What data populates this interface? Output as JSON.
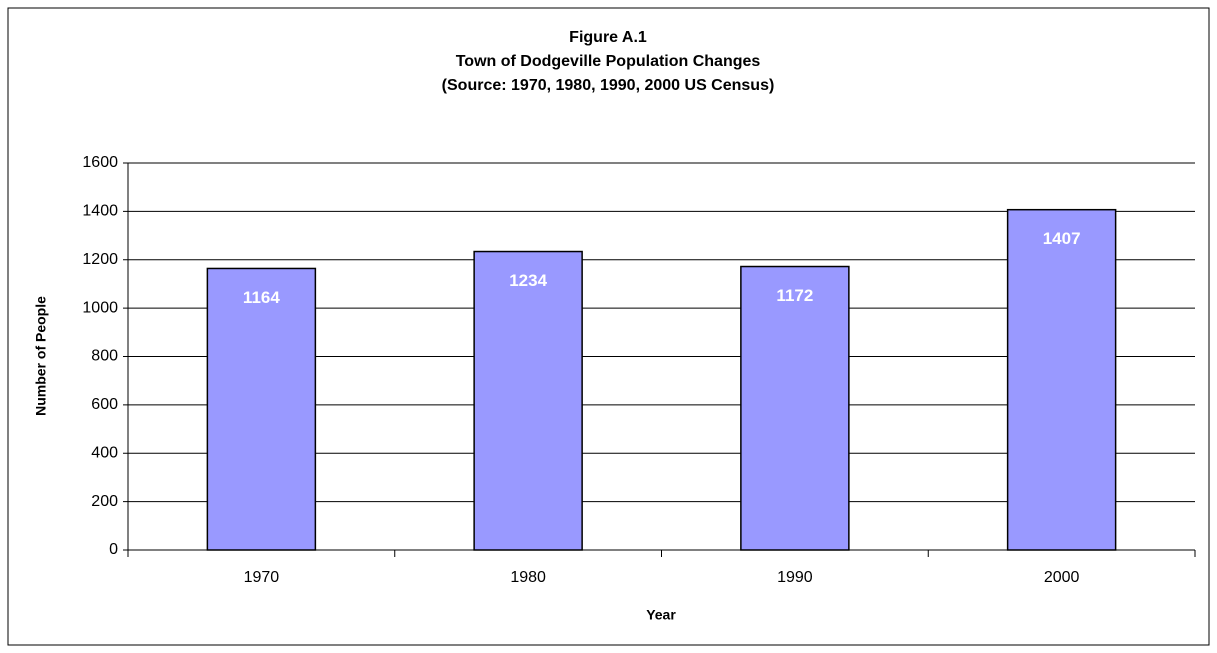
{
  "chart_data": {
    "type": "bar",
    "title": [
      "Figure A.1",
      "Town of Dodgeville Population Changes",
      "(Source:  1970, 1980, 1990, 2000 US Census)"
    ],
    "x_label": "Year",
    "y_label": "Number of People",
    "categories": [
      "1970",
      "1980",
      "1990",
      "2000"
    ],
    "values": [
      1164,
      1234,
      1172,
      1407
    ],
    "color": "#9999ff",
    "ylim": [
      0,
      1600
    ],
    "yticks": [
      0,
      200,
      400,
      600,
      800,
      1000,
      1200,
      1400,
      1600
    ],
    "grid": true
  }
}
